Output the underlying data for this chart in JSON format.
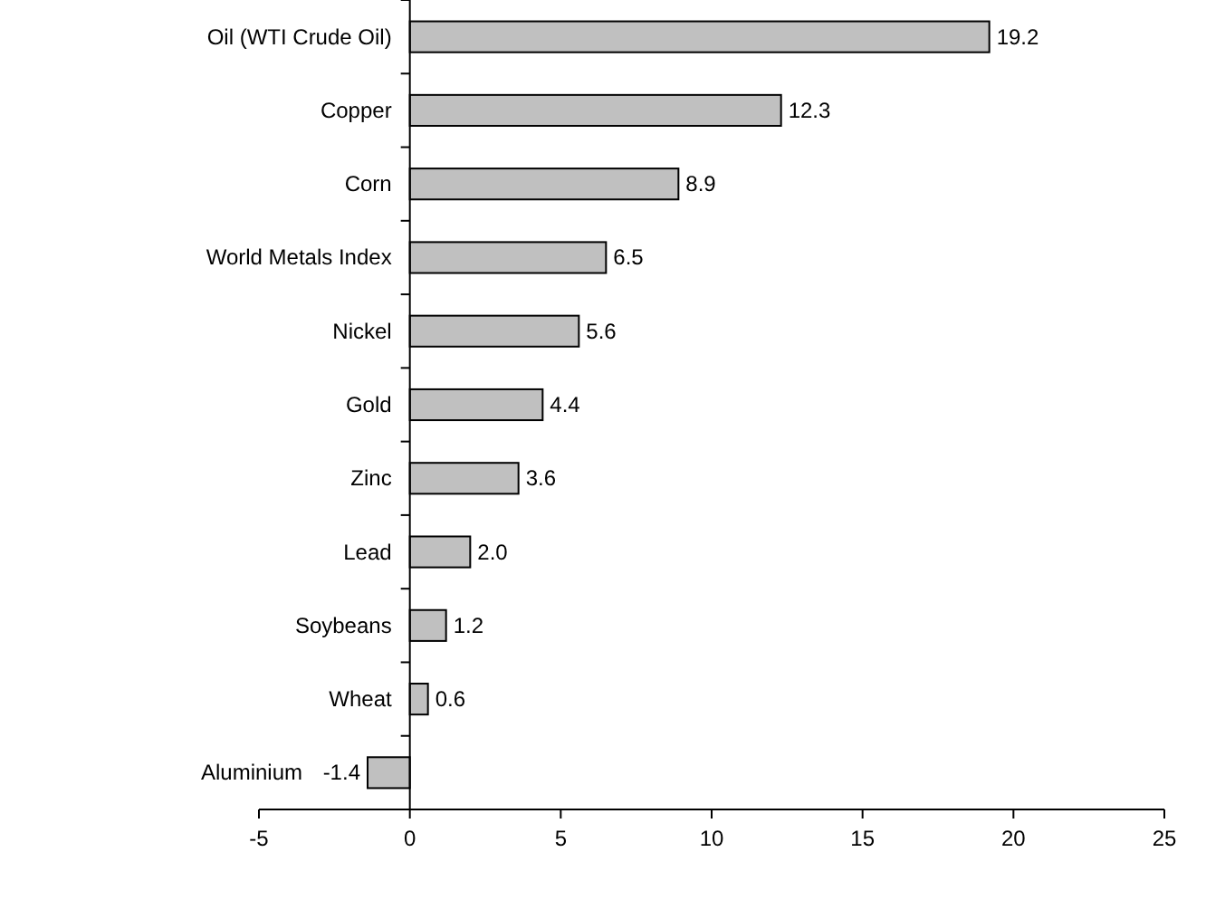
{
  "chart_data": {
    "type": "bar",
    "orientation": "horizontal",
    "categories": [
      "Oil (WTI Crude Oil)",
      "Copper",
      "Corn",
      "World Metals Index",
      "Nickel",
      "Gold",
      "Zinc",
      "Lead",
      "Soybeans",
      "Wheat",
      "Aluminium"
    ],
    "values": [
      19.2,
      12.3,
      8.9,
      6.5,
      5.6,
      4.4,
      3.6,
      2.0,
      1.2,
      0.6,
      -1.4
    ],
    "value_labels": [
      "19.2",
      "12.3",
      "8.9",
      "6.5",
      "5.6",
      "4.4",
      "3.6",
      "2.0",
      "1.2",
      "0.6",
      "-1.4"
    ],
    "color": "#c0c0c0",
    "xlim": [
      -5,
      25
    ],
    "xticks": [
      -5,
      0,
      5,
      10,
      15,
      20,
      25
    ],
    "grid": false
  }
}
